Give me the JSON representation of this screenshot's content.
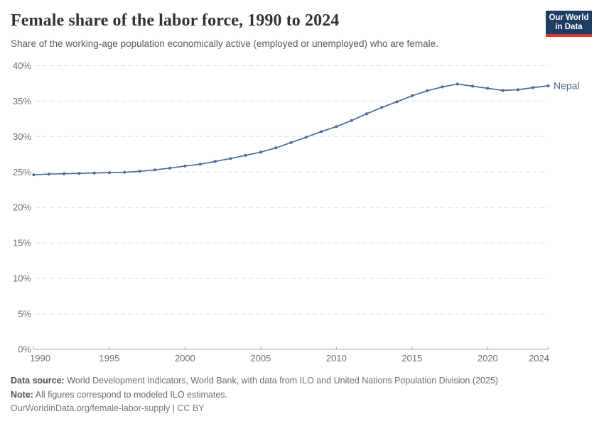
{
  "header": {
    "title": "Female share of the labor force, 1990 to 2024",
    "subtitle": "Share of the working-age population economically active (employed or unemployed) who are female.",
    "logo": {
      "line1": "Our World",
      "line2": "in Data",
      "bg_color": "#1d3d63",
      "bar_color": "#d6382e"
    }
  },
  "chart_data": {
    "type": "line",
    "title": "Female share of the labor force, 1990 to 2024",
    "xlabel": "",
    "ylabel": "",
    "grid": "horizontal-dashed",
    "legend_position": "end-of-line-label",
    "xlim": [
      1990,
      2024
    ],
    "ylim": [
      0,
      40
    ],
    "yticks": [
      0,
      5,
      10,
      15,
      20,
      25,
      30,
      35,
      40
    ],
    "ytick_suffix": "%",
    "xticks": [
      1990,
      1995,
      2000,
      2005,
      2010,
      2015,
      2020,
      2024
    ],
    "x": [
      1990,
      1991,
      1992,
      1993,
      1994,
      1995,
      1996,
      1997,
      1998,
      1999,
      2000,
      2001,
      2002,
      2003,
      2004,
      2005,
      2006,
      2007,
      2008,
      2009,
      2010,
      2011,
      2012,
      2013,
      2014,
      2015,
      2016,
      2017,
      2018,
      2019,
      2020,
      2021,
      2022,
      2023,
      2024
    ],
    "series": [
      {
        "name": "Nepal",
        "color": "#4c6a9c",
        "values": [
          24.6,
          24.7,
          24.75,
          24.8,
          24.85,
          24.9,
          24.95,
          25.1,
          25.3,
          25.55,
          25.85,
          26.1,
          26.5,
          26.9,
          27.35,
          27.8,
          28.4,
          29.15,
          29.9,
          30.7,
          31.4,
          32.25,
          33.2,
          34.1,
          34.9,
          35.75,
          36.45,
          37.0,
          37.4,
          37.1,
          36.8,
          36.5,
          36.6,
          36.9,
          37.15
        ]
      }
    ]
  },
  "footer": {
    "data_source_label": "Data source:",
    "data_source_text": " World Development Indicators, World Bank, with data from ILO and United Nations Population Division (2025)",
    "note_label": "Note:",
    "note_text": " All figures correspond to modeled ILO estimates.",
    "link_text": "OurWorldinData.org/female-labor-supply | CC BY"
  }
}
